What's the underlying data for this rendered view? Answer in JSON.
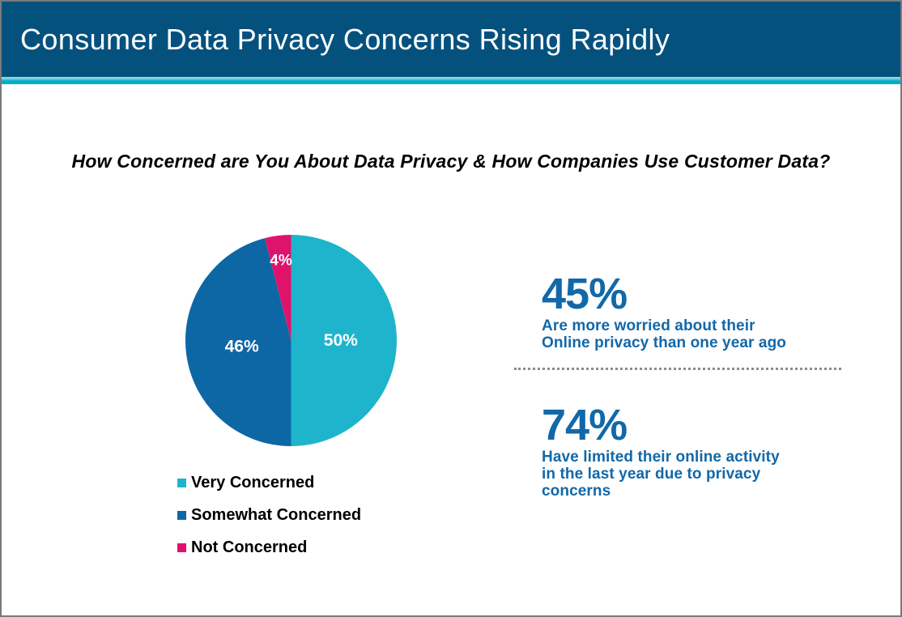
{
  "header": {
    "title": "Consumer Data Privacy Concerns Rising Rapidly"
  },
  "question": "How Concerned are You About Data Privacy & How Companies Use Customer Data?",
  "chart_data": {
    "type": "pie",
    "title": "How Concerned are You About Data Privacy & How Companies Use Customer Data?",
    "labels": [
      "Very Concerned",
      "Somewhat Concerned",
      "Not Concerned"
    ],
    "values": [
      50,
      46,
      4
    ],
    "slice_labels": [
      "50%",
      "46%",
      "4%"
    ],
    "colors": [
      "#1eb4cc",
      "#0e67a5",
      "#e0136c"
    ],
    "label_color": "#ffffff",
    "start_angle_deg": 0,
    "direction": "clockwise",
    "legend_position": "bottom-left"
  },
  "stats": [
    {
      "value": "45%",
      "lines": [
        "Are more worried about their",
        "Online privacy than one year ago"
      ]
    },
    {
      "value": "74%",
      "lines": [
        "Have limited their online activity",
        "in the last year due to privacy",
        "concerns"
      ]
    }
  ],
  "colors": {
    "header_bg": "#05517e",
    "accent_strip": "#00aec9",
    "stat_text": "#1268a9",
    "question_text": "#000000",
    "divider": "#8c8c8c"
  }
}
